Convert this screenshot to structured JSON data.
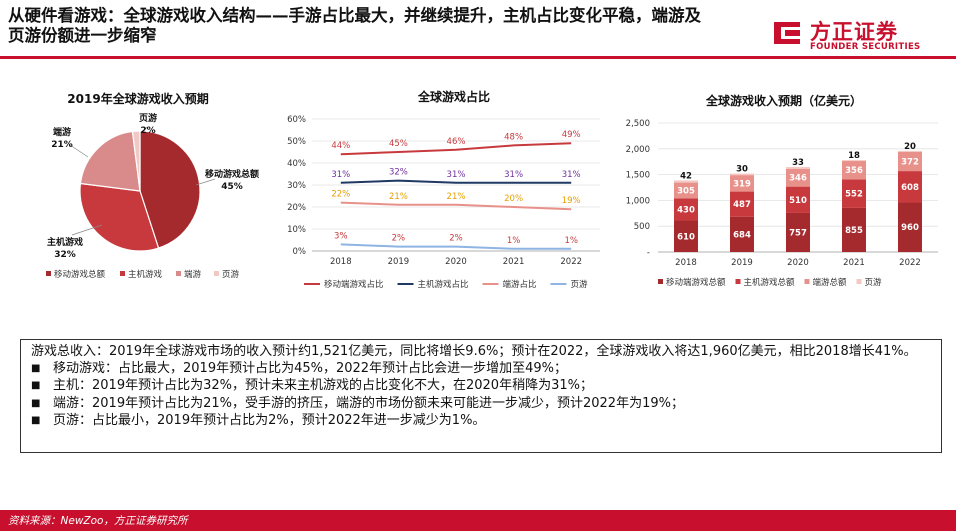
{
  "header": {
    "title_line1": "从硬件看游戏：全球游戏收入结构——手游占比最大，并继续提升，主机占比变化平稳，端游及",
    "title_line2": "页游份额进一步缩窄",
    "logo_cn": "方正证券",
    "logo_en": "FOUNDER SECURITIES",
    "brand_color": "#c8102e"
  },
  "chart_data": [
    {
      "type": "pie",
      "title": "2019年全球游戏收入预期",
      "slices": [
        {
          "name": "移动游戏总额",
          "value": 45,
          "label": "45%",
          "color": "#a52a2e"
        },
        {
          "name": "主机游戏",
          "value": 32,
          "label": "32%",
          "color": "#c8393d"
        },
        {
          "name": "端游",
          "value": 21,
          "label": "21%",
          "color": "#d98a8a"
        },
        {
          "name": "页游",
          "value": 2,
          "label": "2%",
          "color": "#f0c9c4"
        }
      ],
      "legend": [
        "移动游戏总额",
        "主机游戏",
        "端游",
        "页游"
      ],
      "legend_position": "bottom"
    },
    {
      "type": "line",
      "title": "全球游戏占比",
      "x": [
        "2018",
        "2019",
        "2020",
        "2021",
        "2022"
      ],
      "ylim": [
        0,
        60
      ],
      "yticks": [
        "0%",
        "10%",
        "20%",
        "30%",
        "40%",
        "50%",
        "60%"
      ],
      "series": [
        {
          "name": "移动端游戏占比",
          "values": [
            44,
            45,
            46,
            48,
            49
          ],
          "labels": [
            "44%",
            "45%",
            "46%",
            "48%",
            "49%"
          ],
          "color": "#c8393d",
          "label_color": "#c8393d"
        },
        {
          "name": "主机游戏占比",
          "values": [
            31,
            32,
            31,
            31,
            31
          ],
          "labels": [
            "31%",
            "32%",
            "31%",
            "31%",
            "31%"
          ],
          "color": "#1f3864",
          "label_color": "#7030a0"
        },
        {
          "name": "端游占比",
          "values": [
            22,
            21,
            21,
            20,
            19
          ],
          "labels": [
            "22%",
            "21%",
            "21%",
            "20%",
            "19%"
          ],
          "color": "#e8918b",
          "label_color": "#e6a000"
        },
        {
          "name": "页游",
          "values": [
            3,
            2,
            2,
            1,
            1
          ],
          "labels": [
            "3%",
            "2%",
            "2%",
            "1%",
            "1%"
          ],
          "color": "#8eb4e3",
          "label_color": "#c8393d"
        }
      ],
      "legend_position": "bottom"
    },
    {
      "type": "bar",
      "stacked": true,
      "title": "全球游戏收入预期（亿美元）",
      "categories": [
        "2018",
        "2019",
        "2020",
        "2021",
        "2022"
      ],
      "ylim": [
        0,
        2500
      ],
      "yticks": [
        "-",
        "500",
        "1,000",
        "1,500",
        "2,000",
        "2,500"
      ],
      "series": [
        {
          "name": "移动端游戏总额",
          "values": [
            610,
            684,
            757,
            855,
            960
          ],
          "color": "#a52a2e",
          "label_color": "#ffffff"
        },
        {
          "name": "主机游戏总额",
          "values": [
            430,
            487,
            510,
            552,
            608
          ],
          "color": "#c8393d",
          "label_color": "#ffffff"
        },
        {
          "name": "端游总额",
          "values": [
            305,
            319,
            346,
            356,
            372
          ],
          "color": "#e8918b",
          "label_color": "#ffffff"
        },
        {
          "name": "页游",
          "values": [
            42,
            30,
            33,
            18,
            20
          ],
          "color": "#f4c7c0",
          "label_color": "#111111"
        }
      ],
      "legend_position": "bottom"
    }
  ],
  "summary": {
    "intro": "游戏总收入：2019年全球游戏市场的收入预计约1,521亿美元，同比将增长9.6%；预计在2022，全球游戏收入将达1,960亿美元，相比2018增长41%。",
    "bullet_symbol": "■",
    "bullets": [
      "移动游戏：占比最大，2019年预计占比为45%，2022年预计占比会进一步增加至49%；",
      "主机：2019年预计占比为32%，预计未来主机游戏的占比变化不大，在2020年稍降为31%；",
      "端游：2019年预计占比为21%，受手游的挤压，端游的市场份额未来可能进一步减少，预计2022年为19%；",
      "页游：占比最小，2019年预计占比为2%，预计2022年进一步减少为1%。"
    ]
  },
  "footer": {
    "source": "资料来源：NewZoo，方正证券研究所"
  }
}
